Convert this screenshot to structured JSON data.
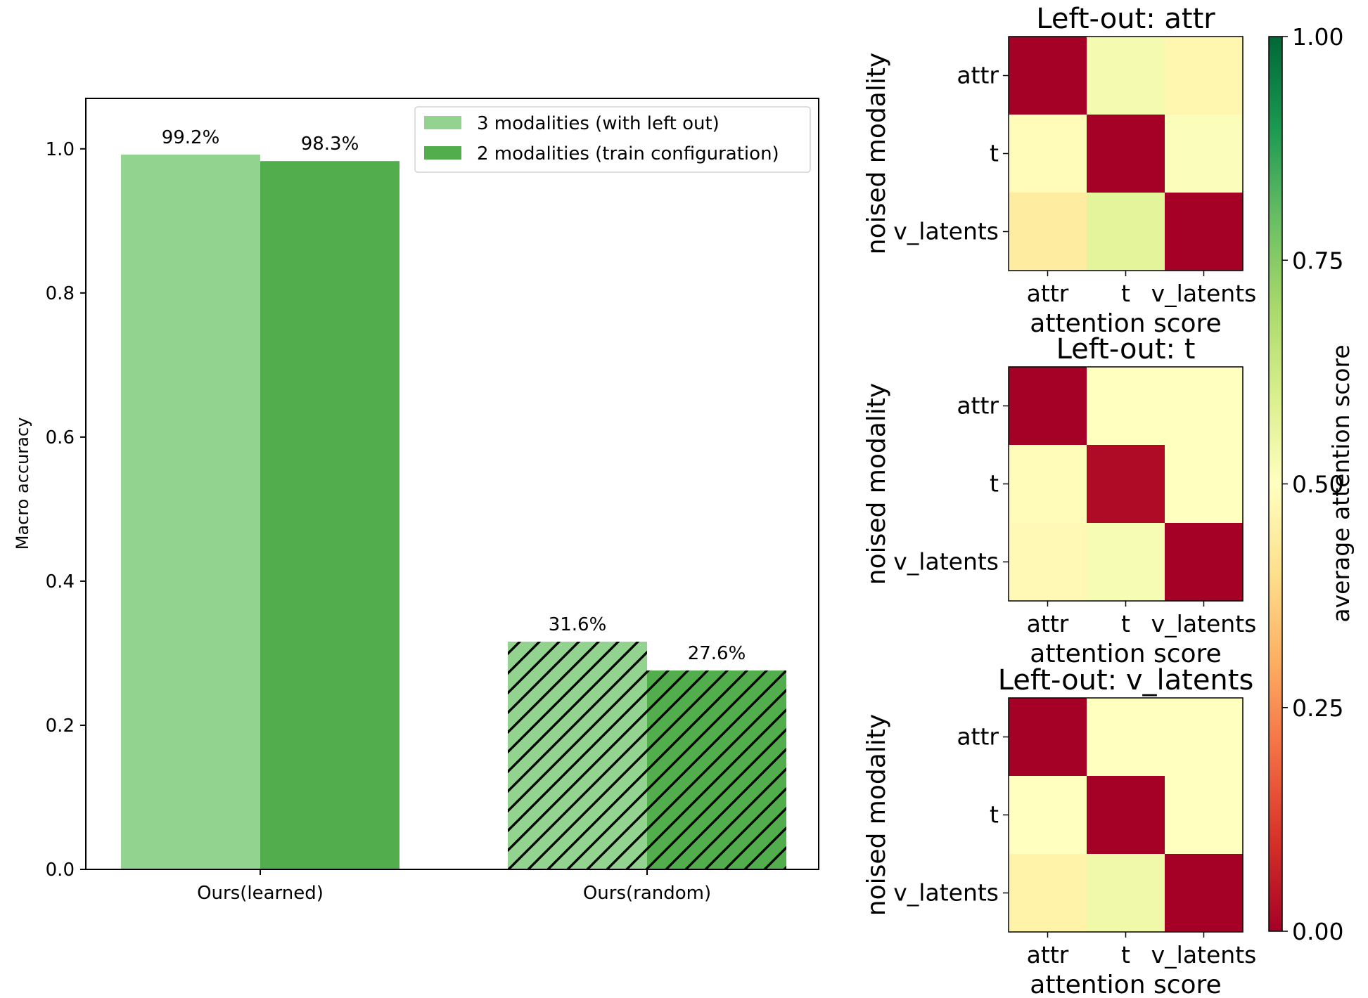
{
  "chart_data": [
    {
      "type": "bar",
      "ylabel": "Macro accuracy",
      "xlabel": "",
      "ylim": [
        0,
        1.07
      ],
      "yticks": [
        "0.0",
        "0.2",
        "0.4",
        "0.6",
        "0.8",
        "1.0"
      ],
      "ytick_values": [
        0,
        0.2,
        0.4,
        0.6,
        0.8,
        1.0
      ],
      "categories": [
        "Ours(learned)",
        "Ours(random)"
      ],
      "legend_position": "top-right",
      "series": [
        {
          "name": "3 modalities (with left out)",
          "color": "#92d38f",
          "values": [
            0.992,
            0.316
          ],
          "labels": [
            "99.2%",
            "31.6%"
          ]
        },
        {
          "name": "2 modalities (train configuration)",
          "color": "#52ad4c",
          "values": [
            0.983,
            0.276
          ],
          "labels": [
            "98.3%",
            "27.6%"
          ]
        }
      ],
      "hatched_category": "Ours(random)"
    },
    {
      "type": "heatmap",
      "title": "Left-out: attr",
      "xlabel": "attention score",
      "ylabel": "noised modality",
      "x_categories": [
        "attr",
        "t",
        "v_latents"
      ],
      "y_categories": [
        "attr",
        "t",
        "v_latents"
      ],
      "values": [
        [
          0.0,
          0.53,
          0.47
        ],
        [
          0.49,
          0.0,
          0.51
        ],
        [
          0.44,
          0.57,
          0.0
        ]
      ]
    },
    {
      "type": "heatmap",
      "title": "Left-out: t",
      "xlabel": "attention score",
      "ylabel": "noised modality",
      "x_categories": [
        "attr",
        "t",
        "v_latents"
      ],
      "y_categories": [
        "attr",
        "t",
        "v_latents"
      ],
      "values": [
        [
          0.0,
          0.5,
          0.5
        ],
        [
          0.49,
          0.02,
          0.5
        ],
        [
          0.48,
          0.52,
          0.0
        ]
      ]
    },
    {
      "type": "heatmap",
      "title": "Left-out: v_latents",
      "xlabel": "attention score",
      "ylabel": "noised modality",
      "x_categories": [
        "attr",
        "t",
        "v_latents"
      ],
      "y_categories": [
        "attr",
        "t",
        "v_latents"
      ],
      "values": [
        [
          0.0,
          0.5,
          0.5
        ],
        [
          0.5,
          0.0,
          0.5
        ],
        [
          0.46,
          0.54,
          0.0
        ]
      ]
    }
  ],
  "colorbar": {
    "label": "average attention score",
    "ticks": [
      "0.00",
      "0.25",
      "0.50",
      "0.75",
      "1.00"
    ],
    "tick_values": [
      0,
      0.25,
      0.5,
      0.75,
      1.0
    ],
    "colormap": "RdYlGn",
    "range": [
      0,
      1
    ]
  }
}
